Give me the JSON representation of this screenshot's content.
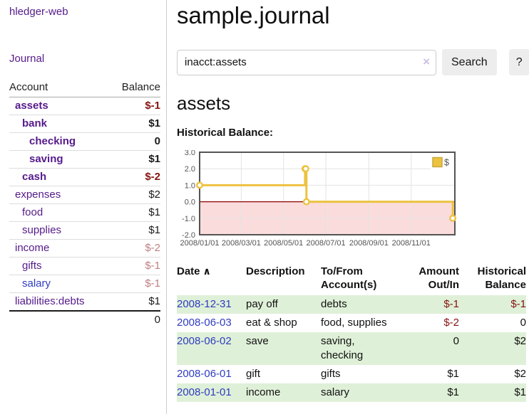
{
  "sidebar": {
    "brand": "hledger-web",
    "nav": {
      "journal": "Journal"
    },
    "table": {
      "account_header": "Account",
      "balance_header": "Balance",
      "accounts": [
        {
          "name": "assets",
          "balance": "$-1",
          "indent": 1,
          "bold": true,
          "negative": true
        },
        {
          "name": "bank",
          "balance": "$1",
          "indent": 2,
          "bold": true,
          "negative": false
        },
        {
          "name": "checking",
          "balance": "0",
          "indent": 3,
          "bold": true,
          "negative": false
        },
        {
          "name": "saving",
          "balance": "$1",
          "indent": 3,
          "bold": true,
          "negative": false
        },
        {
          "name": "cash",
          "balance": "$-2",
          "indent": 2,
          "bold": true,
          "negative": true
        },
        {
          "name": "expenses",
          "balance": "$2",
          "indent": 1,
          "bold": false,
          "negative": false
        },
        {
          "name": "food",
          "balance": "$1",
          "indent": 2,
          "bold": false,
          "negative": false
        },
        {
          "name": "supplies",
          "balance": "$1",
          "indent": 2,
          "bold": false,
          "negative": false
        },
        {
          "name": "income",
          "balance": "$-2",
          "indent": 1,
          "bold": false,
          "negative": true
        },
        {
          "name": "gifts",
          "balance": "$-1",
          "indent": 2,
          "bold": false,
          "negative": true
        },
        {
          "name": "salary",
          "balance": "$-1",
          "indent": 2,
          "bold": false,
          "negative": true,
          "link_color": "blue"
        },
        {
          "name": "liabilities:debts",
          "balance": "$1",
          "indent": 1,
          "bold": false,
          "negative": false
        }
      ],
      "total": "0"
    }
  },
  "main": {
    "title": "sample.journal",
    "search": {
      "value": "inacct:assets",
      "clear_label": "×",
      "search_button": "Search",
      "help_button": "?"
    },
    "account_heading": "assets",
    "chart_label": "Historical Balance:"
  },
  "chart_data": {
    "type": "line",
    "title": "Historical Balance of assets",
    "steps": true,
    "x_range": [
      "2008-01-01",
      "2009-01-03"
    ],
    "ylim": [
      -2,
      3
    ],
    "y_ticks": [
      "3.0",
      "2.0",
      "1.0",
      "0.0",
      "-1.0",
      "-2.0"
    ],
    "x_ticks": [
      "2008/01/01",
      "2008/03/01",
      "2008/05/01",
      "2008/07/01",
      "2008/09/01",
      "2008/11/01"
    ],
    "grid": true,
    "legend_position": "top-right",
    "series": [
      {
        "name": "$",
        "color": "#edc240",
        "points": [
          [
            "2008-01-01",
            1
          ],
          [
            "2008-06-01",
            2
          ],
          [
            "2008-06-02",
            2
          ],
          [
            "2008-06-03",
            0
          ],
          [
            "2008-12-31",
            -1
          ]
        ]
      }
    ],
    "negative_region": {
      "from": 0,
      "to": -2,
      "fill": "#fbdcdc",
      "line_color": "#8b0000"
    }
  },
  "register": {
    "headers": {
      "date": "Date",
      "sort_icon": "∧",
      "description": "Description",
      "accounts": "To/From Account(s)",
      "amount": "Amount Out/In",
      "balance": "Historical Balance"
    },
    "rows": [
      {
        "date": "2008-12-31",
        "description": "pay off",
        "accounts": "debts",
        "amount": "$-1",
        "balance": "$-1"
      },
      {
        "date": "2008-06-03",
        "description": "eat & shop",
        "accounts": "food, supplies",
        "amount": "$-2",
        "balance": "0"
      },
      {
        "date": "2008-06-02",
        "description": "save",
        "accounts": "saving, checking",
        "amount": "0",
        "balance": "$2"
      },
      {
        "date": "2008-06-01",
        "description": "gift",
        "accounts": "gifts",
        "amount": "$1",
        "balance": "$2"
      },
      {
        "date": "2008-01-01",
        "description": "income",
        "accounts": "salary",
        "amount": "$1",
        "balance": "$1"
      }
    ]
  },
  "colors": {
    "link_purple": "#551a8b",
    "link_blue": "#2f3cc0",
    "negative_strong": "#861410",
    "negative_muted": "#c07f7f",
    "row_stripe_green": "#dff0d8",
    "chart_series_yellow": "#edc240",
    "chart_negative_fill": "#fbdcdc",
    "chart_zero_line": "#8b0000",
    "chart_frame": "#545454"
  }
}
